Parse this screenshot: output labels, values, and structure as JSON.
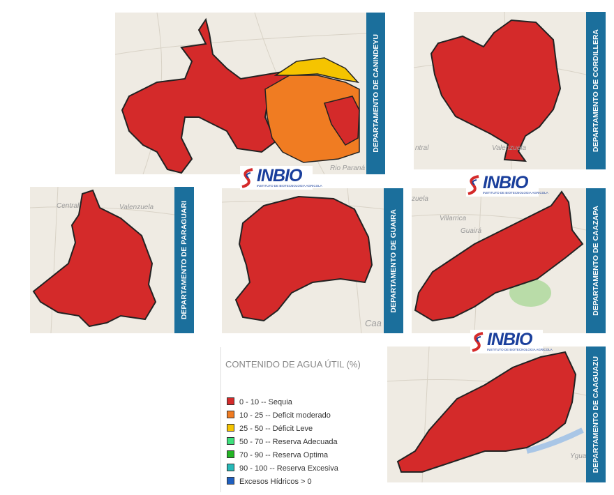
{
  "panels": [
    {
      "label": "DEPARTAMENTO DE CANINDEYU",
      "places": [
        "Rio Paraná"
      ]
    },
    {
      "label": "DEPARTAMENTO DE CORDILLERA",
      "places": [
        "Valenzuela",
        "ntral"
      ]
    },
    {
      "label": "DEPARTAMENTO DE PARAGUARI",
      "places": [
        "Central",
        "Valenzuela"
      ]
    },
    {
      "label": "DEPARTAMENTO DE GUAIRA",
      "places": [
        "Caa"
      ]
    },
    {
      "label": "DEPARTAMENTO DE CAAZAPA",
      "places": [
        "Villarrica",
        "Guairá",
        "zuela"
      ]
    },
    {
      "label": "DEPARTAMENTO DE CAAGUAZU",
      "places": [
        "Ygua"
      ]
    }
  ],
  "logos": [
    {
      "name": "INBIO",
      "subtitle": "INSTITUTO DE BIOTECNOLOGIA AGRICOLA"
    },
    {
      "name": "INBIO",
      "subtitle": "INSTITUTO DE BIOTECNOLOGIA AGRICOLA"
    },
    {
      "name": "INBIO",
      "subtitle": "INSTITUTO DE BIOTECNOLOGIA AGRICOLA"
    }
  ],
  "legend": {
    "title": "CONTENIDO DE AGUA ÚTIL (%)",
    "items": [
      {
        "label": "0 - 10 --  Sequia",
        "color": "#d42a2a"
      },
      {
        "label": "10 - 25 --  Deficit moderado",
        "color": "#f07c22"
      },
      {
        "label": "25 - 50 --  Déficit Leve",
        "color": "#f5c400"
      },
      {
        "label": "50 - 70 --  Reserva Adecuada",
        "color": "#3ee07c"
      },
      {
        "label": "70 - 90 -- Reserva Optima",
        "color": "#23b524"
      },
      {
        "label": "90 - 100 -- Reserva Excesiva",
        "color": "#27b9b8"
      },
      {
        "label": "Excesos Hídricos  > 0",
        "color": "#1f5fbf"
      }
    ]
  }
}
